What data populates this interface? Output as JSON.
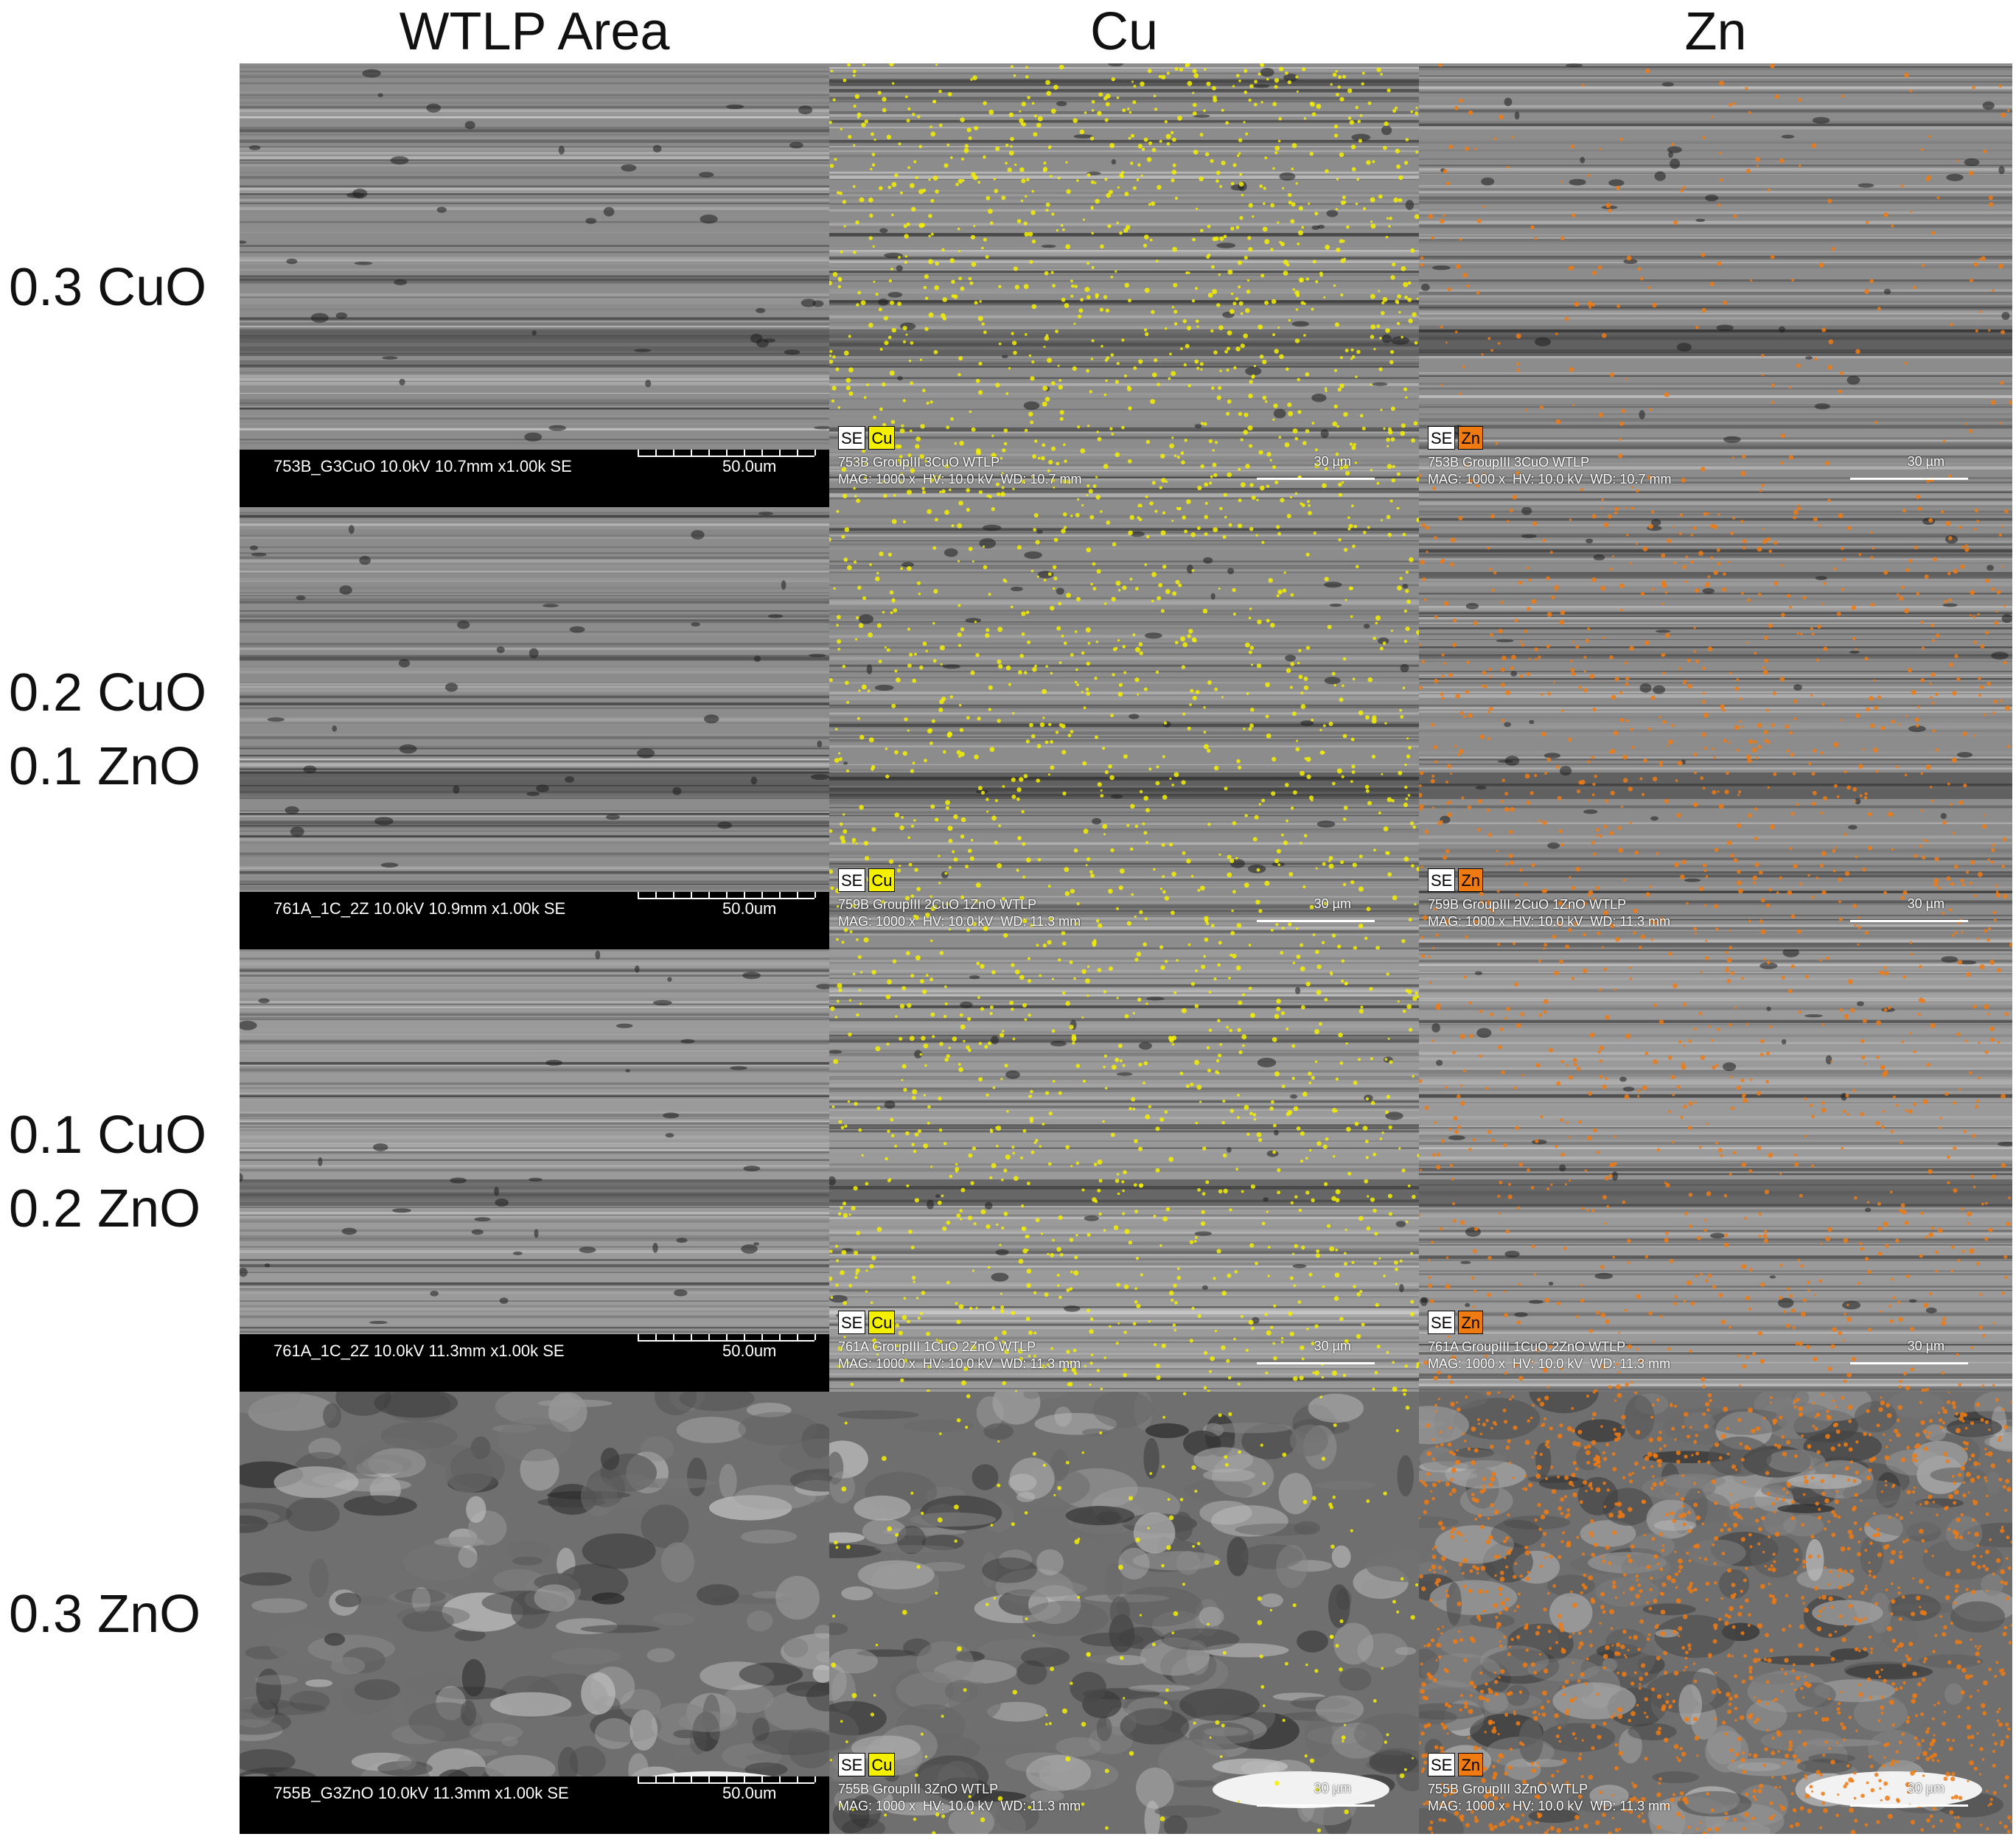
{
  "headers": [
    "WTLP Area",
    "Cu",
    "Zn"
  ],
  "rows": [
    {
      "labels": [
        "0.3 CuO"
      ],
      "sem": {
        "info": "753B_G3CuO 10.0kV 10.7mm x1.00k SE",
        "scale": "50.0um"
      },
      "cu": {
        "tags": [
          "SE",
          "Cu"
        ],
        "line1": "753B GroupIII 3CuO WTLP",
        "line2": "MAG: 1000 x  HV: 10.0 kV  WD: 10.7 mm",
        "scale": "30 µm"
      },
      "zn": {
        "tags": [
          "SE",
          "Zn"
        ],
        "line1": "753B GroupIII 3CuO WTLP",
        "line2": "MAG: 1000 x  HV: 10.0 kV  WD: 10.7 mm",
        "scale": "30 µm"
      },
      "cu_density": 0.55,
      "zn_density": 0.12
    },
    {
      "labels": [
        "0.2 CuO",
        "0.1 ZnO"
      ],
      "sem": {
        "info": "761A_1C_2Z 10.0kV 10.9mm x1.00k SE",
        "scale": "50.0um"
      },
      "cu": {
        "tags": [
          "SE",
          "Cu"
        ],
        "line1": "759B GroupIII 2CuO 1ZnO WTLP",
        "line2": "MAG: 1000 x  HV: 10.0 kV  WD: 11.3 mm",
        "scale": "30 µm"
      },
      "zn": {
        "tags": [
          "SE",
          "Zn"
        ],
        "line1": "759B GroupIII 2CuO 1ZnO WTLP",
        "line2": "MAG: 1000 x  HV: 10.0 kV  WD: 11.3 mm",
        "scale": "30 µm"
      },
      "cu_density": 0.4,
      "zn_density": 0.4
    },
    {
      "labels": [
        "0.1 CuO",
        "0.2 ZnO"
      ],
      "sem": {
        "info": "761A_1C_2Z 10.0kV 11.3mm x1.00k SE",
        "scale": "50.0um"
      },
      "cu": {
        "tags": [
          "SE",
          "Cu"
        ],
        "line1": "761A GroupIII 1CuO 2ZnO WTLP",
        "line2": "MAG: 1000 x  HV: 10.0 kV  WD: 11.3 mm",
        "scale": "30 µm"
      },
      "zn": {
        "tags": [
          "SE",
          "Zn"
        ],
        "line1": "761A GroupIII 1CuO 2ZnO WTLP",
        "line2": "MAG: 1000 x  HV: 10.0 kV  WD: 11.3 mm",
        "scale": "30 µm"
      },
      "cu_density": 0.4,
      "zn_density": 0.3
    },
    {
      "labels": [
        "0.3 ZnO"
      ],
      "sem": {
        "info": "755B_G3ZnO 10.0kV 11.3mm x1.00k SE",
        "scale": "50.0um"
      },
      "cu": {
        "tags": [
          "SE",
          "Cu"
        ],
        "line1": "755B GroupIII 3ZnO WTLP",
        "line2": "MAG: 1000 x  HV: 10.0 kV  WD: 11.3 mm",
        "scale": "30 µm"
      },
      "zn": {
        "tags": [
          "SE",
          "Zn"
        ],
        "line1": "755B GroupIII 3ZnO WTLP",
        "line2": "MAG: 1000 x  HV: 10.0 kV  WD: 11.3 mm",
        "scale": "30 µm"
      },
      "cu_density": 0.1,
      "zn_density": 0.9
    }
  ],
  "colors": {
    "cu_dot": "#f5f000",
    "zn_dot": "#f07a12",
    "label_text": "#111111"
  }
}
